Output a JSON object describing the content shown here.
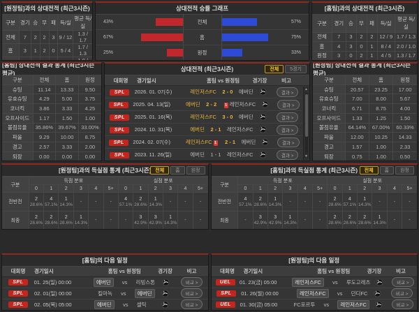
{
  "colors": {
    "accent_red": "#8e2a20",
    "badge_red": "#c4261d",
    "bar_home_red": "#c1272b",
    "bar_away_blue": "#2e4bd8",
    "highlight_yellow": "#e9b63c"
  },
  "record_left": {
    "title": "[원정팀]과의 상대전적 (최근3시즌)",
    "headers": [
      "구분",
      "경기",
      "승",
      "무",
      "패",
      "득/실",
      "평균 득/실"
    ],
    "rows": [
      [
        "전체",
        "7",
        "2",
        "2",
        "3",
        "9 / 12",
        "1.3 / 1.7"
      ],
      [
        "홈",
        "3",
        "1",
        "2",
        "0",
        "5 / 4",
        "1.7 / 1.3"
      ],
      [
        "원정",
        "4",
        "1",
        "0",
        "3",
        "4 / 8",
        "1.0 / 2.0"
      ]
    ]
  },
  "win_graph": {
    "title": "상대전적 승률 그래프",
    "rows": [
      {
        "label": "전체",
        "home_pct": "43%",
        "away_pct": "57%",
        "home_val": 43,
        "away_val": 57
      },
      {
        "label": "홈",
        "home_pct": "67%",
        "away_pct": "75%",
        "home_val": 67,
        "away_val": 75
      },
      {
        "label": "원정",
        "home_pct": "25%",
        "away_pct": "33%",
        "home_val": 25,
        "away_val": 33
      }
    ]
  },
  "record_right": {
    "title": "[홈팀]과의 상대전적 (최근3시즌)",
    "headers": [
      "구분",
      "경기",
      "승",
      "무",
      "패",
      "득/실",
      "평균 득/실"
    ],
    "rows": [
      [
        "전체",
        "7",
        "3",
        "2",
        "2",
        "12 / 9",
        "1.7 / 1.3"
      ],
      [
        "홈",
        "4",
        "3",
        "0",
        "1",
        "8 / 4",
        "2.0 / 1.0"
      ],
      [
        "원정",
        "3",
        "0",
        "2",
        "1",
        "4 / 5",
        "1.3 / 1.7"
      ]
    ]
  },
  "stat_avg_left": {
    "title": "[홈팀] 상대전적 결과 통계 (최근3시즌 평균)",
    "headers": [
      "구분",
      "전체",
      "홈",
      "원정"
    ],
    "rows": [
      [
        "슈팅",
        "11.14",
        "13.33",
        "9.50"
      ],
      [
        "유효슈팅",
        "4.29",
        "5.00",
        "3.75"
      ],
      [
        "코너킥",
        "3.86",
        "3.33",
        "4.25"
      ],
      [
        "오프사이드",
        "1.17",
        "1.50",
        "1.00"
      ],
      [
        "볼점유율",
        "35.86%",
        "39.67%",
        "33.00%"
      ],
      [
        "파울",
        "9.29",
        "10.00",
        "8.75"
      ],
      [
        "경고",
        "2.57",
        "3.33",
        "2.00"
      ],
      [
        "퇴장",
        "0.00",
        "0.00",
        "0.00"
      ]
    ]
  },
  "stat_avg_right": {
    "title": "[원정팀] 상대전적 결과 통계 (최근3시즌 평균)",
    "headers": [
      "구분",
      "전체",
      "홈",
      "원정"
    ],
    "rows": [
      [
        "슈팅",
        "20.57",
        "23.25",
        "17.00"
      ],
      [
        "유효슈팅",
        "7.00",
        "8.00",
        "5.67"
      ],
      [
        "코너킥",
        "6.71",
        "8.75",
        "4.00"
      ],
      [
        "오프사이드",
        "1.33",
        "1.25",
        "1.50"
      ],
      [
        "볼점유율",
        "64.14%",
        "67.00%",
        "60.33%"
      ],
      [
        "파울",
        "12.00",
        "10.25",
        "14.33"
      ],
      [
        "경고",
        "1.57",
        "1.00",
        "2.33"
      ],
      [
        "퇴장",
        "0.75",
        "1.00",
        "0.50"
      ]
    ]
  },
  "h2h": {
    "title": "상대전적 (최근3시즌)",
    "tabs": [
      "전체",
      "5경기"
    ],
    "active_tab": 0,
    "headers": {
      "league": "대회명",
      "date": "경기일시",
      "match": "홈팀  vs  원정팀",
      "venue": "경기장",
      "note": "비고"
    },
    "result_button": "결과 >",
    "rows": [
      {
        "league": "SPL",
        "date": "2026. 01. 07(수)",
        "home": "레인저스FC",
        "score": "2 - 0",
        "away": "에버딘",
        "home_hl": true,
        "away_hl": false,
        "score_hl": true,
        "home_rc": 0,
        "away_rc": 0
      },
      {
        "league": "SPL",
        "date": "2025. 04. 13(일)",
        "home": "에버딘",
        "score": "2 - 2",
        "away": "레인저스FC",
        "home_hl": true,
        "away_hl": false,
        "score_hl": true,
        "home_rc": 0,
        "away_rc": 1
      },
      {
        "league": "SPL",
        "date": "2025. 01. 16(목)",
        "home": "레인저스FC",
        "score": "3 - 0",
        "away": "에버딘",
        "home_hl": true,
        "away_hl": false,
        "score_hl": true,
        "home_rc": 0,
        "away_rc": 0
      },
      {
        "league": "SPL",
        "date": "2024. 10. 31(목)",
        "home": "에버딘",
        "score": "2 - 1",
        "away": "레인저스FC",
        "home_hl": true,
        "away_hl": false,
        "score_hl": true,
        "home_rc": 0,
        "away_rc": 0
      },
      {
        "league": "SPL",
        "date": "2024. 02. 07(수)",
        "home": "레인저스FC",
        "score": "2 - 1",
        "away": "에버딘",
        "home_hl": true,
        "away_hl": false,
        "score_hl": true,
        "home_rc": 1,
        "away_rc": 0
      },
      {
        "league": "SPL",
        "date": "2023. 11. 26(일)",
        "home": "에버딘",
        "score": "1 - 1",
        "away": "레인저스FC",
        "home_hl": false,
        "away_hl": false,
        "score_hl": false,
        "home_rc": 0,
        "away_rc": 0
      }
    ]
  },
  "goal_stats_left": {
    "title": "[원정팀]과의 득실점 통계 (최근3시즌)",
    "tabs": [
      "전체",
      "홈",
      "원정"
    ],
    "active_tab": 0,
    "corner_header": "구분",
    "groups": [
      "득점 분포",
      "실점 분포"
    ],
    "bins": [
      "0",
      "1",
      "2",
      "3",
      "4",
      "5+"
    ],
    "rows": [
      {
        "label": "전반전",
        "scored": [
          [
            "2",
            "28.6%"
          ],
          [
            "4",
            "57.1%"
          ],
          [
            "1",
            "14.3%"
          ],
          null,
          null,
          null
        ],
        "conceded": [
          [
            "4",
            "57.1%"
          ],
          [
            "2",
            "28.6%"
          ],
          [
            "1",
            "14.3%"
          ],
          null,
          null,
          null
        ]
      },
      {
        "label": "최종",
        "scored": [
          [
            "2",
            "28.6%"
          ],
          [
            "2",
            "28.6%"
          ],
          [
            "2",
            "28.6%"
          ],
          [
            "1",
            "14.3%"
          ],
          null,
          null
        ],
        "conceded": [
          null,
          [
            "3",
            "42.9%"
          ],
          [
            "3",
            "42.9%"
          ],
          [
            "1",
            "14.3%"
          ],
          null,
          null
        ]
      }
    ]
  },
  "goal_stats_right": {
    "title": "[홈팀]과의 득실점 통계 (최근3시즌)",
    "tabs": [
      "전체",
      "홈",
      "원정"
    ],
    "active_tab": 0,
    "corner_header": "구분",
    "groups": [
      "득점 분포",
      "실점 분포"
    ],
    "bins": [
      "0",
      "1",
      "2",
      "3",
      "4",
      "5+"
    ],
    "rows": [
      {
        "label": "전반전",
        "scored": [
          [
            "4",
            "57.1%"
          ],
          [
            "2",
            "28.6%"
          ],
          [
            "1",
            "14.3%"
          ],
          null,
          null,
          null
        ],
        "conceded": [
          [
            "2",
            "28.6%"
          ],
          [
            "4",
            "57.1%"
          ],
          [
            "1",
            "14.3%"
          ],
          null,
          null,
          null
        ]
      },
      {
        "label": "최종",
        "scored": [
          null,
          [
            "3",
            "42.9%"
          ],
          [
            "3",
            "42.9%"
          ],
          [
            "1",
            "14.3%"
          ],
          null,
          null
        ],
        "conceded": [
          [
            "2",
            "28.6%"
          ],
          [
            "2",
            "28.6%"
          ],
          [
            "2",
            "28.6%"
          ],
          [
            "1",
            "14.3%"
          ],
          null,
          null
        ]
      }
    ]
  },
  "next_left": {
    "title": "[홈팀]의 다음 일정",
    "headers": {
      "league": "대회명",
      "date": "경기일시",
      "match": "홈팀  vs  원정팀",
      "venue": "경기장",
      "note": "비고"
    },
    "compare_button": "비교 >",
    "rows": [
      {
        "league": "SPL",
        "date": "01. 25(일) 00:00",
        "home": "에버딘",
        "away": "리빙스톤",
        "home_hl": true,
        "away_hl": false
      },
      {
        "league": "SPL",
        "date": "02. 01(일) 00:00",
        "home": "킬마녹",
        "away": "에버딘",
        "home_hl": false,
        "away_hl": true
      },
      {
        "league": "SPL",
        "date": "02. 05(목) 05:00",
        "home": "에버딘",
        "away": "셀틱",
        "home_hl": true,
        "away_hl": false
      }
    ]
  },
  "next_right": {
    "title": "[원정팀]의 다음 일정",
    "headers": {
      "league": "대회명",
      "date": "경기일시",
      "match": "홈팀  vs  원정팀",
      "venue": "경기장",
      "note": "비고"
    },
    "compare_button": "비교 >",
    "rows": [
      {
        "league": "UEL",
        "date": "01. 23(금) 05:00",
        "home": "레인저스FC",
        "away": "루도고레츠",
        "home_hl": true,
        "away_hl": false
      },
      {
        "league": "SPL",
        "date": "01. 26(월) 00:00",
        "home": "레인저스FC",
        "away": "던디FC",
        "home_hl": true,
        "away_hl": false
      },
      {
        "league": "UEL",
        "date": "01. 30(금) 05:00",
        "home": "FC포르투",
        "away": "레인저스FC",
        "home_hl": false,
        "away_hl": true
      }
    ]
  }
}
